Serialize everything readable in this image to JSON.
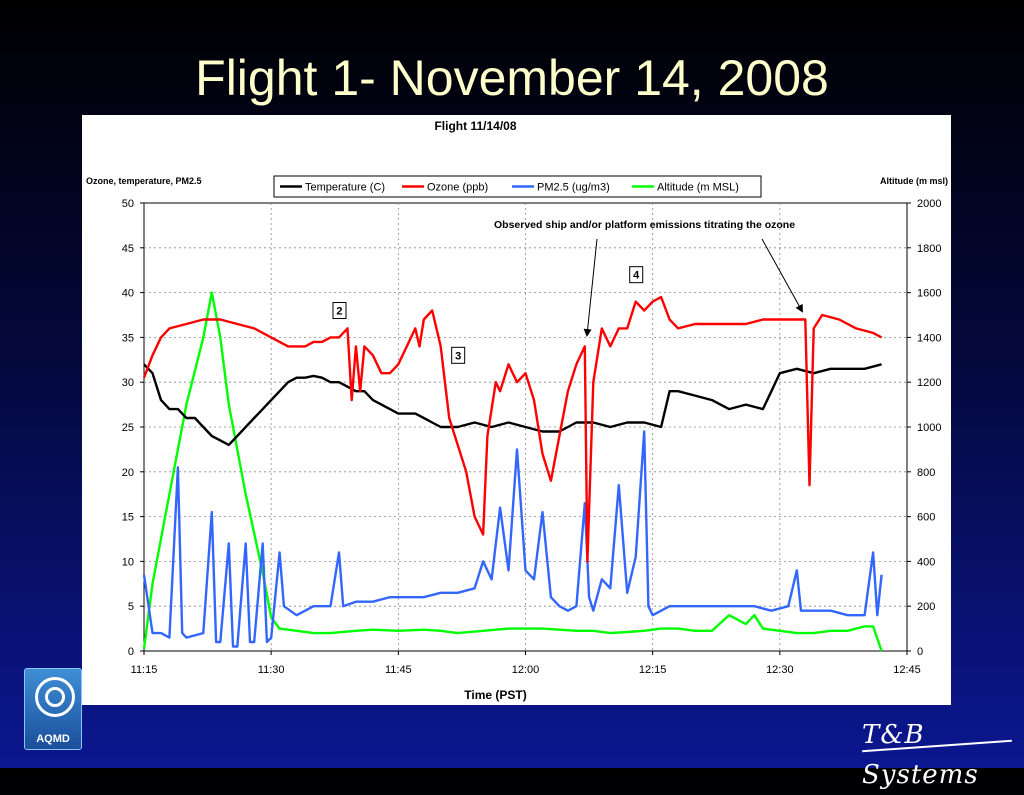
{
  "slide": {
    "title": "Flight 1- November 14, 2008",
    "logo_label": "AQMD",
    "brand_text": "T&B Systems"
  },
  "chart_data": {
    "type": "line",
    "title": "Flight 11/14/08",
    "xlabel": "Time (PST)",
    "ylabel_left": "Ozone, temperature, PM2.5",
    "ylabel_right": "Altitude (m msl)",
    "x_ticks": [
      "11:15",
      "11:30",
      "11:45",
      "12:00",
      "12:15",
      "12:30",
      "12:45"
    ],
    "xlim": [
      "11:15",
      "12:45"
    ],
    "ylim_left": [
      0,
      50
    ],
    "y_ticks_left": [
      0,
      5,
      10,
      15,
      20,
      25,
      30,
      35,
      40,
      45,
      50
    ],
    "ylim_right": [
      0,
      2000
    ],
    "y_ticks_right": [
      0,
      200,
      400,
      600,
      800,
      1000,
      1200,
      1400,
      1600,
      1800,
      2000
    ],
    "grid": true,
    "legend_position": "top",
    "annotation": "Observed ship and/or platform emissions titrating the ozone",
    "markers": [
      {
        "label": "2",
        "x": "11:38",
        "y": 38
      },
      {
        "label": "3",
        "x": "11:52",
        "y": 33
      },
      {
        "label": "4",
        "x": "12:13",
        "y": 42
      }
    ],
    "series": [
      {
        "name": "Temperature (C)",
        "color": "#000000",
        "axis": "left",
        "points": [
          [
            "11:15",
            32
          ],
          [
            "11:16",
            31
          ],
          [
            "11:17",
            28
          ],
          [
            "11:18",
            27
          ],
          [
            "11:19",
            27
          ],
          [
            "11:20",
            26
          ],
          [
            "11:21",
            26
          ],
          [
            "11:22",
            25
          ],
          [
            "11:23",
            24
          ],
          [
            "11:24",
            23.5
          ],
          [
            "11:25",
            23
          ],
          [
            "11:26",
            24
          ],
          [
            "11:27",
            25
          ],
          [
            "11:28",
            26
          ],
          [
            "11:29",
            27
          ],
          [
            "11:30",
            28
          ],
          [
            "11:31",
            29
          ],
          [
            "11:32",
            30
          ],
          [
            "11:33",
            30.5
          ],
          [
            "11:34",
            30.5
          ],
          [
            "11:35",
            30.7
          ],
          [
            "11:36",
            30.5
          ],
          [
            "11:37",
            30
          ],
          [
            "11:38",
            30
          ],
          [
            "11:39",
            29.5
          ],
          [
            "11:40",
            29
          ],
          [
            "11:41",
            29
          ],
          [
            "11:42",
            28
          ],
          [
            "11:43",
            27.5
          ],
          [
            "11:44",
            27
          ],
          [
            "11:45",
            26.5
          ],
          [
            "11:46",
            26.5
          ],
          [
            "11:47",
            26.5
          ],
          [
            "11:48",
            26
          ],
          [
            "11:49",
            25.5
          ],
          [
            "11:50",
            25
          ],
          [
            "11:52",
            25
          ],
          [
            "11:54",
            25.5
          ],
          [
            "11:56",
            25
          ],
          [
            "11:58",
            25.5
          ],
          [
            "12:00",
            25
          ],
          [
            "12:02",
            24.5
          ],
          [
            "12:04",
            24.5
          ],
          [
            "12:06",
            25.5
          ],
          [
            "12:08",
            25.5
          ],
          [
            "12:10",
            25
          ],
          [
            "12:12",
            25.5
          ],
          [
            "12:14",
            25.5
          ],
          [
            "12:16",
            25
          ],
          [
            "12:17",
            29
          ],
          [
            "12:18",
            29
          ],
          [
            "12:20",
            28.5
          ],
          [
            "12:22",
            28
          ],
          [
            "12:24",
            27
          ],
          [
            "12:26",
            27.5
          ],
          [
            "12:28",
            27
          ],
          [
            "12:29",
            29
          ],
          [
            "12:30",
            31
          ],
          [
            "12:32",
            31.5
          ],
          [
            "12:34",
            31
          ],
          [
            "12:36",
            31.5
          ],
          [
            "12:38",
            31.5
          ],
          [
            "12:40",
            31.5
          ],
          [
            "12:42",
            32
          ]
        ]
      },
      {
        "name": "Ozone (ppb)",
        "color": "#ff0000",
        "axis": "left",
        "points": [
          [
            "11:15",
            30.5
          ],
          [
            "11:16",
            33
          ],
          [
            "11:17",
            35
          ],
          [
            "11:18",
            36
          ],
          [
            "11:20",
            36.5
          ],
          [
            "11:22",
            37
          ],
          [
            "11:24",
            37
          ],
          [
            "11:26",
            36.5
          ],
          [
            "11:28",
            36
          ],
          [
            "11:30",
            35
          ],
          [
            "11:31",
            34.5
          ],
          [
            "11:32",
            34
          ],
          [
            "11:34",
            34
          ],
          [
            "11:35",
            34.5
          ],
          [
            "11:36",
            34.5
          ],
          [
            "11:37",
            35
          ],
          [
            "11:38",
            35
          ],
          [
            "11:39",
            36
          ],
          [
            "11:39.5",
            28
          ],
          [
            "11:40",
            34
          ],
          [
            "11:40.5",
            29
          ],
          [
            "11:41",
            34
          ],
          [
            "11:42",
            33
          ],
          [
            "11:43",
            31
          ],
          [
            "11:44",
            31
          ],
          [
            "11:45",
            32
          ],
          [
            "11:46",
            34
          ],
          [
            "11:47",
            36
          ],
          [
            "11:47.5",
            34
          ],
          [
            "11:48",
            37
          ],
          [
            "11:49",
            38
          ],
          [
            "11:50",
            34
          ],
          [
            "11:51",
            26
          ],
          [
            "11:52",
            23
          ],
          [
            "11:53",
            20
          ],
          [
            "11:54",
            15
          ],
          [
            "11:55",
            13
          ],
          [
            "11:55.5",
            24
          ],
          [
            "11:56",
            27
          ],
          [
            "11:56.5",
            30
          ],
          [
            "11:57",
            29
          ],
          [
            "11:58",
            32
          ],
          [
            "11:59",
            30
          ],
          [
            "12:00",
            31
          ],
          [
            "12:01",
            28
          ],
          [
            "12:02",
            22
          ],
          [
            "12:03",
            19
          ],
          [
            "12:04",
            24
          ],
          [
            "12:05",
            29
          ],
          [
            "12:06",
            32
          ],
          [
            "12:07",
            34
          ],
          [
            "12:07.3",
            10
          ],
          [
            "12:08",
            30
          ],
          [
            "12:09",
            36
          ],
          [
            "12:10",
            34
          ],
          [
            "12:11",
            36
          ],
          [
            "12:12",
            36
          ],
          [
            "12:13",
            39
          ],
          [
            "12:14",
            38
          ],
          [
            "12:15",
            39
          ],
          [
            "12:16",
            39.5
          ],
          [
            "12:17",
            37
          ],
          [
            "12:18",
            36
          ],
          [
            "12:20",
            36.5
          ],
          [
            "12:22",
            36.5
          ],
          [
            "12:24",
            36.5
          ],
          [
            "12:26",
            36.5
          ],
          [
            "12:28",
            37
          ],
          [
            "12:30",
            37
          ],
          [
            "12:32",
            37
          ],
          [
            "12:33",
            37
          ],
          [
            "12:33.5",
            18.5
          ],
          [
            "12:34",
            36
          ],
          [
            "12:35",
            37.5
          ],
          [
            "12:37",
            37
          ],
          [
            "12:39",
            36
          ],
          [
            "12:41",
            35.5
          ],
          [
            "12:42",
            35
          ]
        ]
      },
      {
        "name": "PM2.5 (ug/m3)",
        "color": "#3366ff",
        "axis": "left",
        "points": [
          [
            "11:15",
            8.5
          ],
          [
            "11:16",
            2
          ],
          [
            "11:17",
            2
          ],
          [
            "11:18",
            1.5
          ],
          [
            "11:19",
            20.5
          ],
          [
            "11:19.5",
            2
          ],
          [
            "11:20",
            1.5
          ],
          [
            "11:22",
            2
          ],
          [
            "11:23",
            15.5
          ],
          [
            "11:23.5",
            1
          ],
          [
            "11:24",
            1
          ],
          [
            "11:25",
            12
          ],
          [
            "11:25.5",
            0.5
          ],
          [
            "11:26",
            0.5
          ],
          [
            "11:27",
            12
          ],
          [
            "11:27.5",
            1
          ],
          [
            "11:28",
            1
          ],
          [
            "11:29",
            12
          ],
          [
            "11:29.5",
            1
          ],
          [
            "11:30",
            1.5
          ],
          [
            "11:31",
            11
          ],
          [
            "11:31.5",
            5
          ],
          [
            "11:33",
            4
          ],
          [
            "11:35",
            5
          ],
          [
            "11:37",
            5
          ],
          [
            "11:38",
            11
          ],
          [
            "11:38.5",
            5
          ],
          [
            "11:40",
            5.5
          ],
          [
            "11:42",
            5.5
          ],
          [
            "11:44",
            6
          ],
          [
            "11:46",
            6
          ],
          [
            "11:48",
            6
          ],
          [
            "11:50",
            6.5
          ],
          [
            "11:52",
            6.5
          ],
          [
            "11:54",
            7
          ],
          [
            "11:55",
            10
          ],
          [
            "11:56",
            8
          ],
          [
            "11:57",
            16
          ],
          [
            "11:58",
            9
          ],
          [
            "11:59",
            22.5
          ],
          [
            "12:00",
            9
          ],
          [
            "12:01",
            8
          ],
          [
            "12:02",
            15.5
          ],
          [
            "12:03",
            6
          ],
          [
            "12:04",
            5
          ],
          [
            "12:05",
            4.5
          ],
          [
            "12:06",
            5
          ],
          [
            "12:07",
            16.5
          ],
          [
            "12:07.5",
            6
          ],
          [
            "12:08",
            4.5
          ],
          [
            "12:09",
            8
          ],
          [
            "12:10",
            7
          ],
          [
            "12:11",
            18.5
          ],
          [
            "12:12",
            6.5
          ],
          [
            "12:13",
            10.5
          ],
          [
            "12:14",
            24.5
          ],
          [
            "12:14.5",
            5
          ],
          [
            "12:15",
            4
          ],
          [
            "12:17",
            5
          ],
          [
            "12:19",
            5
          ],
          [
            "12:21",
            5
          ],
          [
            "12:23",
            5
          ],
          [
            "12:25",
            5
          ],
          [
            "12:27",
            5
          ],
          [
            "12:29",
            4.5
          ],
          [
            "12:31",
            5
          ],
          [
            "12:32",
            9
          ],
          [
            "12:32.5",
            4.5
          ],
          [
            "12:34",
            4.5
          ],
          [
            "12:36",
            4.5
          ],
          [
            "12:38",
            4
          ],
          [
            "12:40",
            4
          ],
          [
            "12:41",
            11
          ],
          [
            "12:41.5",
            4
          ],
          [
            "12:42",
            8.5
          ]
        ]
      },
      {
        "name": "Altitude (m MSL)",
        "color": "#00ff00",
        "axis": "right",
        "points": [
          [
            "11:15",
            10
          ],
          [
            "11:16",
            300
          ],
          [
            "11:18",
            700
          ],
          [
            "11:20",
            1100
          ],
          [
            "11:22",
            1400
          ],
          [
            "11:23",
            1600
          ],
          [
            "11:24",
            1400
          ],
          [
            "11:25",
            1100
          ],
          [
            "11:27",
            700
          ],
          [
            "11:29",
            350
          ],
          [
            "11:30",
            150
          ],
          [
            "11:31",
            100
          ],
          [
            "11:33",
            90
          ],
          [
            "11:35",
            80
          ],
          [
            "11:37",
            80
          ],
          [
            "11:40",
            90
          ],
          [
            "11:42",
            95
          ],
          [
            "11:45",
            90
          ],
          [
            "11:48",
            95
          ],
          [
            "11:50",
            90
          ],
          [
            "11:52",
            80
          ],
          [
            "11:55",
            90
          ],
          [
            "11:58",
            100
          ],
          [
            "12:00",
            100
          ],
          [
            "12:02",
            100
          ],
          [
            "12:04",
            95
          ],
          [
            "12:06",
            90
          ],
          [
            "12:08",
            90
          ],
          [
            "12:10",
            80
          ],
          [
            "12:12",
            85
          ],
          [
            "12:14",
            90
          ],
          [
            "12:16",
            100
          ],
          [
            "12:18",
            100
          ],
          [
            "12:20",
            90
          ],
          [
            "12:22",
            90
          ],
          [
            "12:24",
            160
          ],
          [
            "12:25",
            140
          ],
          [
            "12:26",
            120
          ],
          [
            "12:27",
            160
          ],
          [
            "12:28",
            100
          ],
          [
            "12:30",
            90
          ],
          [
            "12:32",
            80
          ],
          [
            "12:34",
            80
          ],
          [
            "12:36",
            90
          ],
          [
            "12:38",
            90
          ],
          [
            "12:40",
            110
          ],
          [
            "12:41",
            110
          ],
          [
            "12:42",
            0
          ]
        ]
      }
    ]
  }
}
